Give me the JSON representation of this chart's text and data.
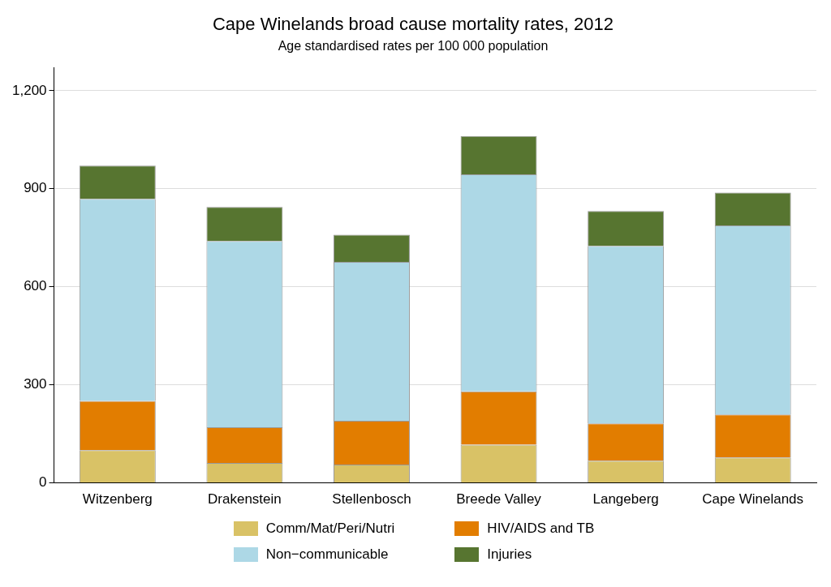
{
  "chart_data": {
    "type": "bar",
    "title": "Cape Winelands broad cause mortality rates, 2012",
    "subtitle": "Age standardised rates per 100 000 population",
    "categories": [
      "Witzenberg",
      "Drakenstein",
      "Stellenbosch",
      "Breede Valley",
      "Langeberg",
      "Cape Winelands"
    ],
    "stacked": true,
    "series": [
      {
        "name": "Comm/Mat/Peri/Nutri",
        "color": "#d9c266",
        "values": [
          100,
          61,
          56,
          117,
          68,
          78
        ]
      },
      {
        "name": "HIV/AIDS and TB",
        "color": "#e27d00",
        "values": [
          151,
          109,
          134,
          163,
          114,
          131
        ]
      },
      {
        "name": "Non−communicable",
        "color": "#add8e6",
        "values": [
          618,
          570,
          486,
          664,
          543,
          579
        ]
      },
      {
        "name": "Injuries",
        "color": "#577530",
        "values": [
          102,
          104,
          83,
          117,
          107,
          100
        ]
      }
    ],
    "ylim": [
      0,
      1270
    ],
    "yticks": [
      0,
      300,
      600,
      900,
      {
        "value": 1200,
        "label": "1,200"
      }
    ],
    "grid": "y",
    "legend": "bottom"
  }
}
